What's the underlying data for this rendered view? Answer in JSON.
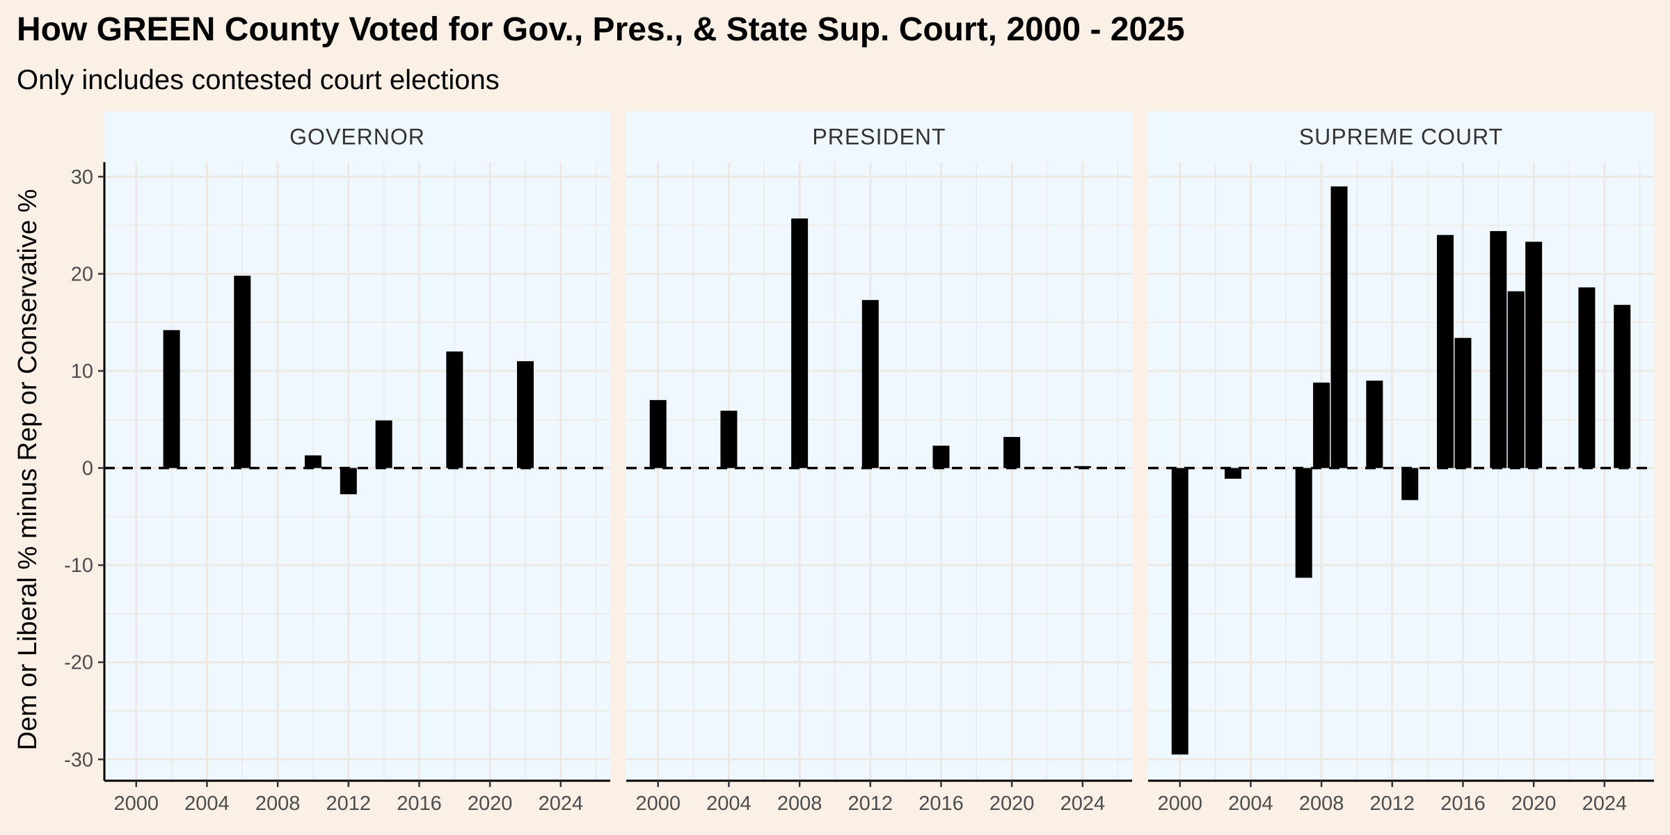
{
  "title": "How GREEN County Voted for Gov., Pres., & State Sup. Court, 2000 - 2025",
  "subtitle": "Only includes contested court elections",
  "ylabel": "Dem or Liberal % minus Rep or Conservative %",
  "colors": {
    "page_background": "#faf0e6",
    "panel_background": "#eff7ff",
    "grid": "#ece8e3",
    "bar": "#000000",
    "reference_line": "#000000"
  },
  "chart_data": {
    "type": "bar",
    "facets": [
      "GOVERNOR",
      "PRESIDENT",
      "SUPREME COURT"
    ],
    "x_ticks": [
      2000,
      2004,
      2008,
      2012,
      2016,
      2020,
      2024
    ],
    "y_ticks": [
      -30,
      -20,
      -10,
      0,
      10,
      20,
      30
    ],
    "xlim": [
      1998.2,
      2026.8
    ],
    "ylim": [
      -32.2,
      31.5
    ],
    "reference_line": {
      "y": 0,
      "style": "dashed"
    },
    "grid": true,
    "panels": [
      {
        "name": "GOVERNOR",
        "x": [
          2002,
          2006,
          2010,
          2012,
          2014,
          2018,
          2022
        ],
        "values": [
          14.2,
          19.8,
          1.3,
          -2.7,
          4.9,
          12.0,
          11.0
        ]
      },
      {
        "name": "PRESIDENT",
        "x": [
          2000,
          2004,
          2008,
          2012,
          2016,
          2020,
          2024
        ],
        "values": [
          7.0,
          5.9,
          25.7,
          17.3,
          2.3,
          3.2,
          0.2
        ]
      },
      {
        "name": "SUPREME COURT",
        "x": [
          2000,
          2003,
          2007,
          2008,
          2009,
          2011,
          2013,
          2015,
          2016,
          2018,
          2019,
          2020,
          2023,
          2025
        ],
        "values": [
          -29.5,
          -1.1,
          -11.3,
          8.8,
          29.0,
          9.0,
          -3.3,
          24.0,
          13.4,
          24.4,
          18.2,
          23.3,
          18.6,
          16.8
        ]
      }
    ]
  }
}
